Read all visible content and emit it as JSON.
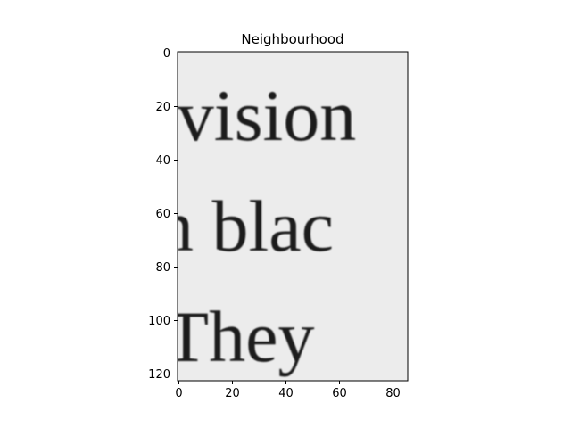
{
  "chart_data": {
    "type": "heatmap",
    "title": "Neighbourhood",
    "xlabel": "",
    "ylabel": "",
    "xlim": [
      -0.5,
      85.5
    ],
    "ylim": [
      122.5,
      -0.5
    ],
    "xticks": [
      0,
      20,
      40,
      60,
      80
    ],
    "yticks": [
      0,
      20,
      40,
      60,
      80,
      100,
      120
    ],
    "colormap": "gray",
    "grid": false,
    "image_text_lines": [
      "ivision",
      "n blac",
      "They"
    ]
  }
}
